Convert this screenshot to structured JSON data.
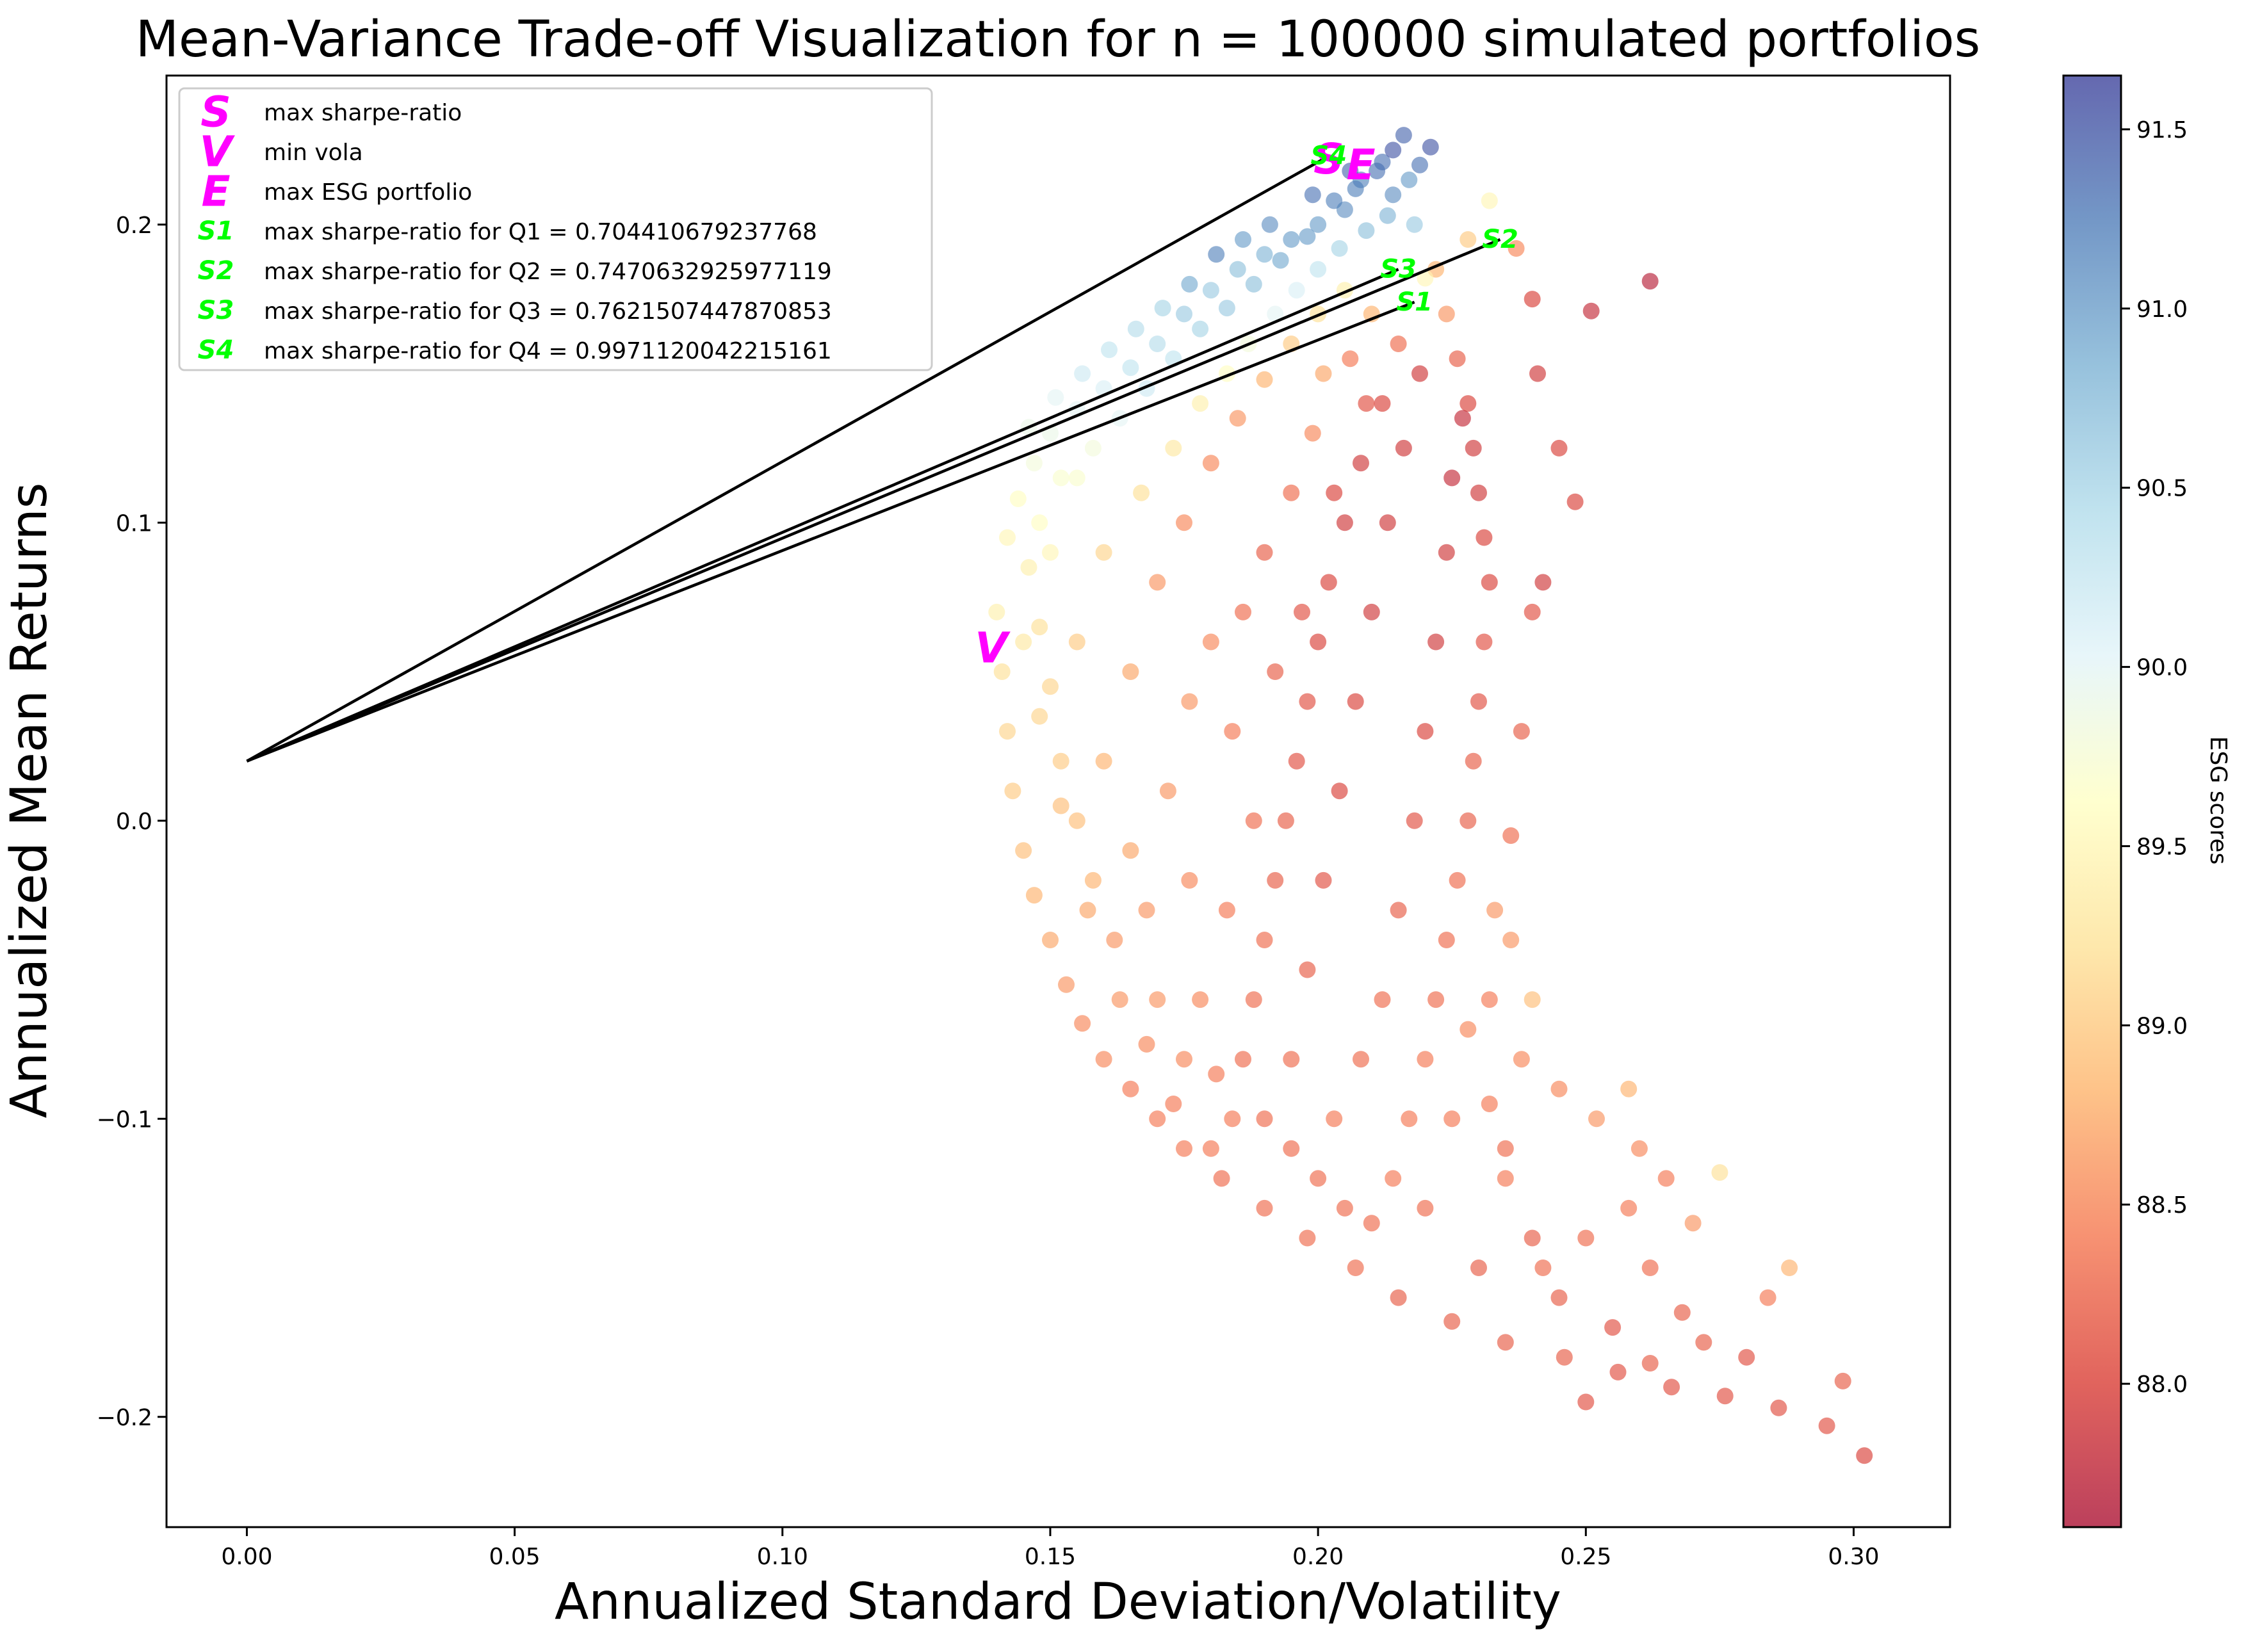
{
  "chart_data": {
    "type": "scatter",
    "title": "Mean-Variance Trade-off Visualization for n = 100000 simulated portfolios",
    "xlabel": "Annualized Standard Deviation/Volatility",
    "ylabel": "Annualized Mean Returns",
    "xlim": [
      -0.015,
      0.318
    ],
    "ylim": [
      -0.237,
      0.25
    ],
    "x_ticks": [
      0.0,
      0.05,
      0.1,
      0.15,
      0.2,
      0.25,
      0.3
    ],
    "x_tick_labels": [
      "0.00",
      "0.05",
      "0.10",
      "0.15",
      "0.20",
      "0.25",
      "0.30"
    ],
    "y_ticks": [
      -0.2,
      -0.1,
      0.0,
      0.1,
      0.2
    ],
    "y_tick_labels": [
      "−0.2",
      "−0.1",
      "0.0",
      "0.1",
      "0.2"
    ],
    "grid": false,
    "legend_position": "top-left",
    "colorbar": {
      "label": "ESG scores",
      "range": [
        87.6,
        91.65
      ],
      "ticks": [
        88.0,
        88.5,
        89.0,
        89.5,
        90.0,
        90.5,
        91.0,
        91.5
      ],
      "tick_labels": [
        "88.0",
        "88.5",
        "89.0",
        "89.5",
        "90.0",
        "90.5",
        "91.0",
        "91.5"
      ],
      "colormap": "RdYlBu",
      "stops": [
        "#a50026",
        "#d73027",
        "#f46d43",
        "#fdae61",
        "#fee090",
        "#ffffbf",
        "#e0f3f8",
        "#abd9e9",
        "#74add1",
        "#4575b4",
        "#313695"
      ]
    },
    "risk_free_point": {
      "x": 0.0,
      "y": 0.02
    },
    "special_points": [
      {
        "label": "S",
        "name": "max sharpe-ratio",
        "x": 0.202,
        "y": 0.222,
        "color": "#ff00ff"
      },
      {
        "label": "V",
        "name": "min vola",
        "x": 0.139,
        "y": 0.058,
        "color": "#ff00ff"
      },
      {
        "label": "E",
        "name": "max ESG portfolio",
        "x": 0.208,
        "y": 0.22,
        "color": "#ff00ff"
      },
      {
        "label": "S1",
        "name": "max sharpe-ratio for Q1 = 0.704410679237768",
        "x": 0.218,
        "y": 0.174,
        "color": "#00ff00"
      },
      {
        "label": "S2",
        "name": "max sharpe-ratio for Q2 = 0.7470632925977119",
        "x": 0.234,
        "y": 0.195,
        "color": "#00ff00"
      },
      {
        "label": "S3",
        "name": "max sharpe-ratio for Q3 = 0.7621507447870853",
        "x": 0.215,
        "y": 0.185,
        "color": "#00ff00"
      },
      {
        "label": "S4",
        "name": "max sharpe-ratio for Q4 = 0.9971120042215161",
        "x": 0.202,
        "y": 0.223,
        "color": "#00ff00"
      }
    ],
    "scatter_points": [
      [
        0.14,
        0.07,
        89.4
      ],
      [
        0.141,
        0.05,
        89.2
      ],
      [
        0.142,
        0.03,
        89.1
      ],
      [
        0.143,
        0.01,
        89.0
      ],
      [
        0.145,
        -0.01,
        88.9
      ],
      [
        0.147,
        -0.025,
        88.8
      ],
      [
        0.15,
        -0.04,
        88.7
      ],
      [
        0.153,
        -0.055,
        88.6
      ],
      [
        0.156,
        -0.068,
        88.5
      ],
      [
        0.16,
        -0.08,
        88.5
      ],
      [
        0.165,
        -0.09,
        88.4
      ],
      [
        0.17,
        -0.1,
        88.4
      ],
      [
        0.175,
        -0.11,
        88.4
      ],
      [
        0.182,
        -0.12,
        88.3
      ],
      [
        0.19,
        -0.13,
        88.3
      ],
      [
        0.198,
        -0.14,
        88.3
      ],
      [
        0.207,
        -0.15,
        88.3
      ],
      [
        0.215,
        -0.16,
        88.2
      ],
      [
        0.225,
        -0.168,
        88.2
      ],
      [
        0.235,
        -0.175,
        88.2
      ],
      [
        0.246,
        -0.18,
        88.2
      ],
      [
        0.256,
        -0.185,
        88.1
      ],
      [
        0.266,
        -0.19,
        88.1
      ],
      [
        0.276,
        -0.193,
        88.1
      ],
      [
        0.286,
        -0.197,
        88.1
      ],
      [
        0.295,
        -0.203,
        88.1
      ],
      [
        0.302,
        -0.213,
        88.0
      ],
      [
        0.298,
        -0.188,
        88.2
      ],
      [
        0.288,
        -0.15,
        88.8
      ],
      [
        0.275,
        -0.118,
        89.2
      ],
      [
        0.262,
        -0.182,
        88.2
      ],
      [
        0.25,
        -0.195,
        88.1
      ],
      [
        0.242,
        -0.15,
        88.3
      ],
      [
        0.235,
        -0.12,
        88.4
      ],
      [
        0.232,
        -0.095,
        88.4
      ],
      [
        0.228,
        -0.07,
        88.5
      ],
      [
        0.233,
        -0.03,
        88.6
      ],
      [
        0.236,
        -0.005,
        88.3
      ],
      [
        0.238,
        0.03,
        88.2
      ],
      [
        0.24,
        0.07,
        88.1
      ],
      [
        0.242,
        0.08,
        87.9
      ],
      [
        0.248,
        0.107,
        88.0
      ],
      [
        0.245,
        0.125,
        88.0
      ],
      [
        0.241,
        0.15,
        87.9
      ],
      [
        0.24,
        0.175,
        88.0
      ],
      [
        0.251,
        0.171,
        87.8
      ],
      [
        0.262,
        0.181,
        87.7
      ],
      [
        0.237,
        0.192,
        88.5
      ],
      [
        0.232,
        0.208,
        89.5
      ],
      [
        0.228,
        0.195,
        89.0
      ],
      [
        0.222,
        0.185,
        88.8
      ],
      [
        0.221,
        0.226,
        91.5
      ],
      [
        0.216,
        0.23,
        91.4
      ],
      [
        0.212,
        0.221,
        91.3
      ],
      [
        0.208,
        0.215,
        91.2
      ],
      [
        0.205,
        0.205,
        91.1
      ],
      [
        0.2,
        0.2,
        91.0
      ],
      [
        0.195,
        0.195,
        91.0
      ],
      [
        0.19,
        0.19,
        90.8
      ],
      [
        0.185,
        0.185,
        90.7
      ],
      [
        0.18,
        0.178,
        90.6
      ],
      [
        0.175,
        0.17,
        90.6
      ],
      [
        0.17,
        0.16,
        90.4
      ],
      [
        0.165,
        0.152,
        90.3
      ],
      [
        0.16,
        0.145,
        90.1
      ],
      [
        0.155,
        0.138,
        90.0
      ],
      [
        0.15,
        0.13,
        89.9
      ],
      [
        0.147,
        0.12,
        89.8
      ],
      [
        0.144,
        0.108,
        89.6
      ],
      [
        0.142,
        0.095,
        89.5
      ],
      [
        0.148,
        0.1,
        89.6
      ],
      [
        0.152,
        0.115,
        89.7
      ],
      [
        0.158,
        0.125,
        89.8
      ],
      [
        0.163,
        0.135,
        90.0
      ],
      [
        0.168,
        0.145,
        90.2
      ],
      [
        0.173,
        0.155,
        90.3
      ],
      [
        0.178,
        0.165,
        90.5
      ],
      [
        0.183,
        0.172,
        90.6
      ],
      [
        0.188,
        0.18,
        90.7
      ],
      [
        0.193,
        0.188,
        90.9
      ],
      [
        0.198,
        0.196,
        91.0
      ],
      [
        0.203,
        0.208,
        91.2
      ],
      [
        0.207,
        0.212,
        91.2
      ],
      [
        0.211,
        0.218,
        91.3
      ],
      [
        0.214,
        0.21,
        91.1
      ],
      [
        0.218,
        0.2,
        90.6
      ],
      [
        0.22,
        0.182,
        89.5
      ],
      [
        0.224,
        0.17,
        88.6
      ],
      [
        0.226,
        0.155,
        88.2
      ],
      [
        0.228,
        0.14,
        88.0
      ],
      [
        0.229,
        0.125,
        87.9
      ],
      [
        0.23,
        0.11,
        87.9
      ],
      [
        0.231,
        0.095,
        88.0
      ],
      [
        0.232,
        0.08,
        88.0
      ],
      [
        0.231,
        0.06,
        88.1
      ],
      [
        0.23,
        0.04,
        88.1
      ],
      [
        0.229,
        0.02,
        88.2
      ],
      [
        0.228,
        0.0,
        88.2
      ],
      [
        0.226,
        -0.02,
        88.3
      ],
      [
        0.224,
        -0.04,
        88.3
      ],
      [
        0.222,
        -0.06,
        88.3
      ],
      [
        0.22,
        -0.08,
        88.4
      ],
      [
        0.217,
        -0.1,
        88.4
      ],
      [
        0.214,
        -0.12,
        88.4
      ],
      [
        0.21,
        -0.135,
        88.3
      ],
      [
        0.16,
        0.02,
        88.8
      ],
      [
        0.165,
        0.05,
        88.7
      ],
      [
        0.17,
        0.08,
        88.6
      ],
      [
        0.175,
        0.1,
        88.5
      ],
      [
        0.18,
        0.12,
        88.5
      ],
      [
        0.185,
        0.135,
        88.6
      ],
      [
        0.19,
        0.148,
        88.8
      ],
      [
        0.195,
        0.16,
        89.0
      ],
      [
        0.2,
        0.17,
        89.2
      ],
      [
        0.205,
        0.178,
        89.4
      ],
      [
        0.21,
        0.17,
        88.8
      ],
      [
        0.215,
        0.16,
        88.3
      ],
      [
        0.212,
        0.14,
        88.0
      ],
      [
        0.208,
        0.12,
        87.9
      ],
      [
        0.205,
        0.1,
        87.9
      ],
      [
        0.202,
        0.08,
        88.0
      ],
      [
        0.2,
        0.06,
        88.0
      ],
      [
        0.198,
        0.04,
        88.1
      ],
      [
        0.196,
        0.02,
        88.1
      ],
      [
        0.194,
        0.0,
        88.2
      ],
      [
        0.192,
        -0.02,
        88.2
      ],
      [
        0.19,
        -0.04,
        88.3
      ],
      [
        0.188,
        -0.06,
        88.3
      ],
      [
        0.186,
        -0.08,
        88.3
      ],
      [
        0.184,
        -0.1,
        88.4
      ],
      [
        0.18,
        -0.11,
        88.4
      ],
      [
        0.175,
        -0.08,
        88.5
      ],
      [
        0.17,
        -0.06,
        88.6
      ],
      [
        0.168,
        -0.03,
        88.6
      ],
      [
        0.165,
        -0.01,
        88.7
      ],
      [
        0.162,
        -0.04,
        88.6
      ],
      [
        0.158,
        -0.02,
        88.8
      ],
      [
        0.155,
        0.0,
        88.9
      ],
      [
        0.152,
        0.02,
        89.0
      ],
      [
        0.15,
        0.045,
        89.1
      ],
      [
        0.148,
        0.065,
        89.2
      ],
      [
        0.146,
        0.085,
        89.4
      ],
      [
        0.155,
        0.06,
        89.0
      ],
      [
        0.16,
        0.09,
        89.1
      ],
      [
        0.167,
        0.11,
        89.2
      ],
      [
        0.173,
        0.125,
        89.3
      ],
      [
        0.178,
        0.14,
        89.4
      ],
      [
        0.183,
        0.15,
        89.6
      ],
      [
        0.187,
        0.16,
        89.8
      ],
      [
        0.192,
        0.17,
        90.0
      ],
      [
        0.196,
        0.178,
        90.1
      ],
      [
        0.2,
        0.185,
        90.3
      ],
      [
        0.204,
        0.192,
        90.5
      ],
      [
        0.209,
        0.198,
        90.7
      ],
      [
        0.213,
        0.203,
        90.8
      ],
      [
        0.217,
        0.215,
        91.0
      ],
      [
        0.219,
        0.22,
        91.3
      ],
      [
        0.214,
        0.225,
        91.5
      ],
      [
        0.206,
        0.218,
        91.4
      ],
      [
        0.199,
        0.21,
        91.3
      ],
      [
        0.191,
        0.2,
        91.1
      ],
      [
        0.186,
        0.195,
        91.0
      ],
      [
        0.181,
        0.19,
        91.2
      ],
      [
        0.176,
        0.18,
        90.9
      ],
      [
        0.171,
        0.172,
        90.5
      ],
      [
        0.166,
        0.165,
        90.4
      ],
      [
        0.161,
        0.158,
        90.3
      ],
      [
        0.156,
        0.15,
        90.2
      ],
      [
        0.151,
        0.142,
        90.0
      ],
      [
        0.146,
        0.132,
        89.9
      ],
      [
        0.195,
        -0.11,
        88.3
      ],
      [
        0.2,
        -0.12,
        88.3
      ],
      [
        0.205,
        -0.13,
        88.3
      ],
      [
        0.203,
        -0.1,
        88.4
      ],
      [
        0.208,
        -0.08,
        88.3
      ],
      [
        0.212,
        -0.06,
        88.3
      ],
      [
        0.215,
        -0.03,
        88.2
      ],
      [
        0.218,
        0.0,
        88.1
      ],
      [
        0.22,
        0.03,
        88.0
      ],
      [
        0.222,
        0.06,
        87.9
      ],
      [
        0.224,
        0.09,
        87.9
      ],
      [
        0.225,
        0.115,
        87.8
      ],
      [
        0.227,
        0.135,
        87.8
      ],
      [
        0.219,
        0.15,
        87.9
      ],
      [
        0.216,
        0.125,
        87.9
      ],
      [
        0.213,
        0.1,
        87.9
      ],
      [
        0.21,
        0.07,
        87.9
      ],
      [
        0.207,
        0.04,
        88.0
      ],
      [
        0.204,
        0.01,
        88.0
      ],
      [
        0.201,
        -0.02,
        88.1
      ],
      [
        0.198,
        -0.05,
        88.2
      ],
      [
        0.195,
        -0.08,
        88.3
      ],
      [
        0.24,
        -0.14,
        88.2
      ],
      [
        0.245,
        -0.16,
        88.2
      ],
      [
        0.255,
        -0.17,
        88.1
      ],
      [
        0.258,
        -0.13,
        88.4
      ],
      [
        0.262,
        -0.15,
        88.3
      ],
      [
        0.268,
        -0.165,
        88.2
      ],
      [
        0.272,
        -0.175,
        88.2
      ],
      [
        0.28,
        -0.18,
        88.1
      ],
      [
        0.284,
        -0.16,
        88.4
      ],
      [
        0.27,
        -0.135,
        88.6
      ],
      [
        0.26,
        -0.11,
        88.5
      ],
      [
        0.252,
        -0.1,
        88.6
      ],
      [
        0.245,
        -0.09,
        88.5
      ],
      [
        0.238,
        -0.08,
        88.5
      ],
      [
        0.232,
        -0.06,
        88.4
      ],
      [
        0.236,
        -0.04,
        88.6
      ],
      [
        0.225,
        -0.1,
        88.4
      ],
      [
        0.22,
        -0.13,
        88.3
      ],
      [
        0.23,
        -0.15,
        88.2
      ],
      [
        0.235,
        -0.11,
        88.3
      ],
      [
        0.25,
        -0.14,
        88.3
      ],
      [
        0.265,
        -0.12,
        88.4
      ],
      [
        0.258,
        -0.09,
        88.8
      ],
      [
        0.24,
        -0.06,
        88.9
      ],
      [
        0.155,
        0.115,
        89.7
      ],
      [
        0.15,
        0.09,
        89.5
      ],
      [
        0.145,
        0.06,
        89.3
      ],
      [
        0.148,
        0.035,
        89.1
      ],
      [
        0.152,
        0.005,
        88.9
      ],
      [
        0.157,
        -0.03,
        88.7
      ],
      [
        0.163,
        -0.06,
        88.6
      ],
      [
        0.168,
        -0.075,
        88.5
      ],
      [
        0.173,
        -0.095,
        88.4
      ],
      [
        0.178,
        -0.06,
        88.5
      ],
      [
        0.183,
        -0.03,
        88.4
      ],
      [
        0.188,
        0.0,
        88.3
      ],
      [
        0.184,
        0.03,
        88.4
      ],
      [
        0.18,
        0.06,
        88.5
      ],
      [
        0.176,
        0.04,
        88.6
      ],
      [
        0.172,
        0.01,
        88.6
      ],
      [
        0.176,
        -0.02,
        88.5
      ],
      [
        0.181,
        -0.085,
        88.4
      ],
      [
        0.19,
        -0.1,
        88.3
      ],
      [
        0.199,
        0.13,
        88.5
      ],
      [
        0.195,
        0.11,
        88.3
      ],
      [
        0.19,
        0.09,
        88.2
      ],
      [
        0.186,
        0.07,
        88.3
      ],
      [
        0.192,
        0.05,
        88.2
      ],
      [
        0.197,
        0.07,
        88.1
      ],
      [
        0.203,
        0.11,
        88.0
      ],
      [
        0.209,
        0.14,
        88.1
      ],
      [
        0.206,
        0.155,
        88.4
      ],
      [
        0.201,
        0.15,
        88.7
      ]
    ],
    "reference_lines": [
      {
        "from": [
          0.0,
          0.02
        ],
        "to": [
          0.202,
          0.223
        ]
      },
      {
        "from": [
          0.0,
          0.02
        ],
        "to": [
          0.234,
          0.195
        ]
      },
      {
        "from": [
          0.0,
          0.02
        ],
        "to": [
          0.215,
          0.185
        ]
      },
      {
        "from": [
          0.0,
          0.02
        ],
        "to": [
          0.218,
          0.174
        ]
      }
    ]
  }
}
